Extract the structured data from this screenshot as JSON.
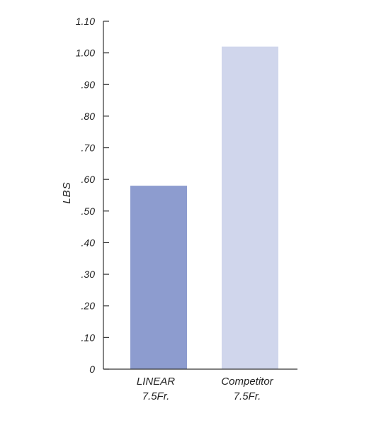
{
  "chart_data": {
    "type": "bar",
    "title": "",
    "xlabel": "",
    "ylabel": "LBS",
    "ylim": [
      0,
      1.1
    ],
    "yticks": [
      {
        "value": 0,
        "label": "0"
      },
      {
        "value": 0.1,
        "label": ".10"
      },
      {
        "value": 0.2,
        "label": ".20"
      },
      {
        "value": 0.3,
        "label": ".30"
      },
      {
        "value": 0.4,
        "label": ".40"
      },
      {
        "value": 0.5,
        "label": ".50"
      },
      {
        "value": 0.6,
        "label": ".60"
      },
      {
        "value": 0.7,
        "label": ".70"
      },
      {
        "value": 0.8,
        "label": ".80"
      },
      {
        "value": 0.9,
        "label": ".90"
      },
      {
        "value": 1.0,
        "label": "1.00"
      },
      {
        "value": 1.1,
        "label": "1.10"
      }
    ],
    "categories": [
      {
        "line1": "LINEAR",
        "line2": "7.5Fr."
      },
      {
        "line1": "Competitor",
        "line2": "7.5Fr."
      }
    ],
    "values": [
      0.58,
      1.02
    ],
    "colors": [
      "#8d9ccf",
      "#d0d6ec"
    ],
    "grid": false,
    "legend": "none"
  },
  "colors": {
    "axis": "#333333"
  }
}
